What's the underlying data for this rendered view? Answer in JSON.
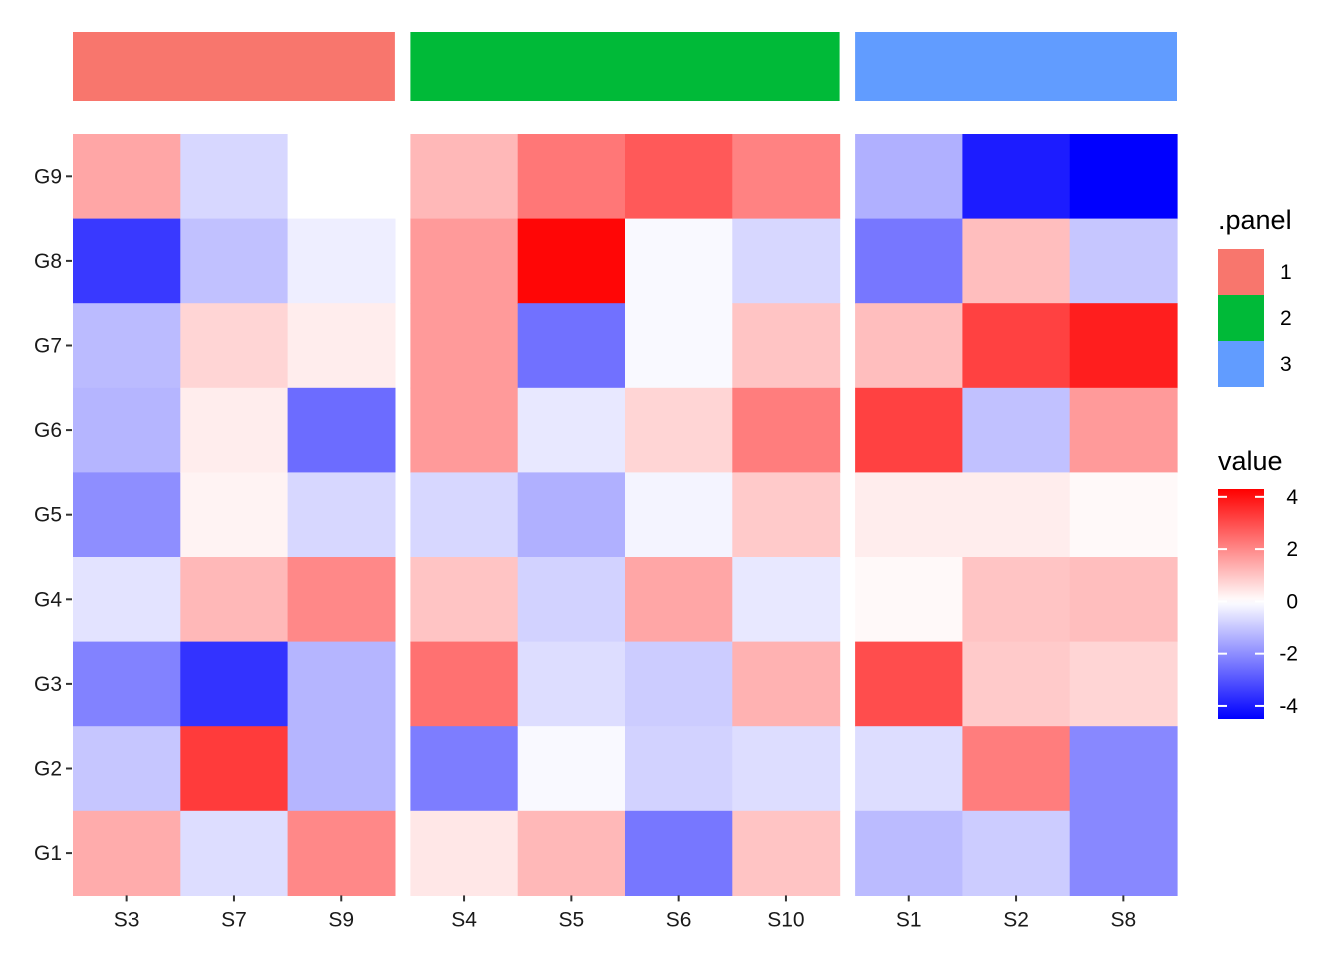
{
  "chart_data": {
    "type": "heatmap",
    "title": "",
    "xlabel": "",
    "ylabel": "",
    "rows": [
      "G9",
      "G8",
      "G7",
      "G6",
      "G5",
      "G4",
      "G3",
      "G2",
      "G1"
    ],
    "panels": [
      {
        "panel": "1",
        "color": "#F8766D",
        "columns": [
          "S3",
          "S7",
          "S9"
        ],
        "values": [
          [
            1.5,
            -0.7,
            0.0
          ],
          [
            -3.5,
            -1.1,
            -0.3
          ],
          [
            -1.2,
            0.7,
            0.3
          ],
          [
            -1.3,
            0.3,
            -2.6
          ],
          [
            -2.0,
            0.2,
            -0.7
          ],
          [
            -0.5,
            1.2,
            2.0
          ],
          [
            -2.2,
            -3.6,
            -1.3
          ],
          [
            -1.0,
            3.3,
            -1.3
          ],
          [
            1.4,
            -0.6,
            2.0
          ]
        ]
      },
      {
        "panel": "2",
        "color": "#00BA38",
        "columns": [
          "S4",
          "S5",
          "S6",
          "S10"
        ],
        "values": [
          [
            1.2,
            2.3,
            2.8,
            2.1
          ],
          [
            1.7,
            4.2,
            -0.1,
            -0.7
          ],
          [
            1.7,
            -2.5,
            -0.1,
            1.0
          ],
          [
            1.7,
            -0.4,
            0.7,
            2.2
          ],
          [
            -0.7,
            -1.4,
            -0.2,
            0.9
          ],
          [
            1.0,
            -0.8,
            1.5,
            -0.4
          ],
          [
            2.4,
            -0.6,
            -0.9,
            1.3
          ],
          [
            -2.3,
            -0.1,
            -0.8,
            -0.6
          ],
          [
            0.4,
            1.2,
            -2.4,
            1.0
          ]
        ]
      },
      {
        "panel": "3",
        "color": "#619CFF",
        "columns": [
          "S1",
          "S2",
          "S8"
        ],
        "values": [
          [
            -1.4,
            -4.0,
            -5.0
          ],
          [
            -2.4,
            1.1,
            -1.0
          ],
          [
            1.1,
            3.2,
            3.8
          ],
          [
            3.2,
            -1.1,
            1.7
          ],
          [
            0.3,
            0.3,
            0.1
          ],
          [
            0.1,
            1.0,
            1.1
          ],
          [
            3.0,
            0.9,
            0.7
          ],
          [
            -0.6,
            2.2,
            -2.1
          ],
          [
            -1.2,
            -0.9,
            -2.1
          ]
        ]
      }
    ],
    "color_scale": {
      "title": "value",
      "low": "#0000FF",
      "mid": "#FFFFFF",
      "high": "#FF0000",
      "limits": [
        -4.5,
        4.3
      ],
      "breaks": [
        4,
        2,
        0,
        -2,
        -4
      ],
      "break_labels": [
        "4",
        "2",
        "0",
        "-2",
        "-4"
      ]
    },
    "panel_legend": {
      "title": ".panel",
      "items": [
        {
          "label": "1",
          "color": "#F8766D"
        },
        {
          "label": "2",
          "color": "#00BA38"
        },
        {
          "label": "3",
          "color": "#619CFF"
        }
      ]
    },
    "legend_position": "right"
  }
}
